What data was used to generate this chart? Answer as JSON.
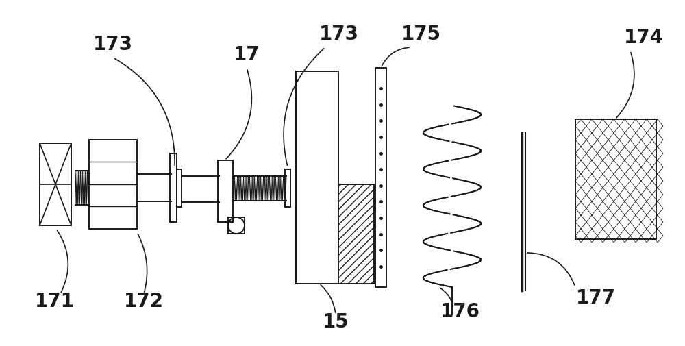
{
  "bg_color": "#ffffff",
  "line_color": "#1a1a1a",
  "lw": 1.4,
  "figsize": [
    10.0,
    5.06
  ],
  "dpi": 100,
  "font_size": 20,
  "font_weight": "bold",
  "xlim": [
    0,
    1000
  ],
  "ylim": [
    0,
    506
  ]
}
